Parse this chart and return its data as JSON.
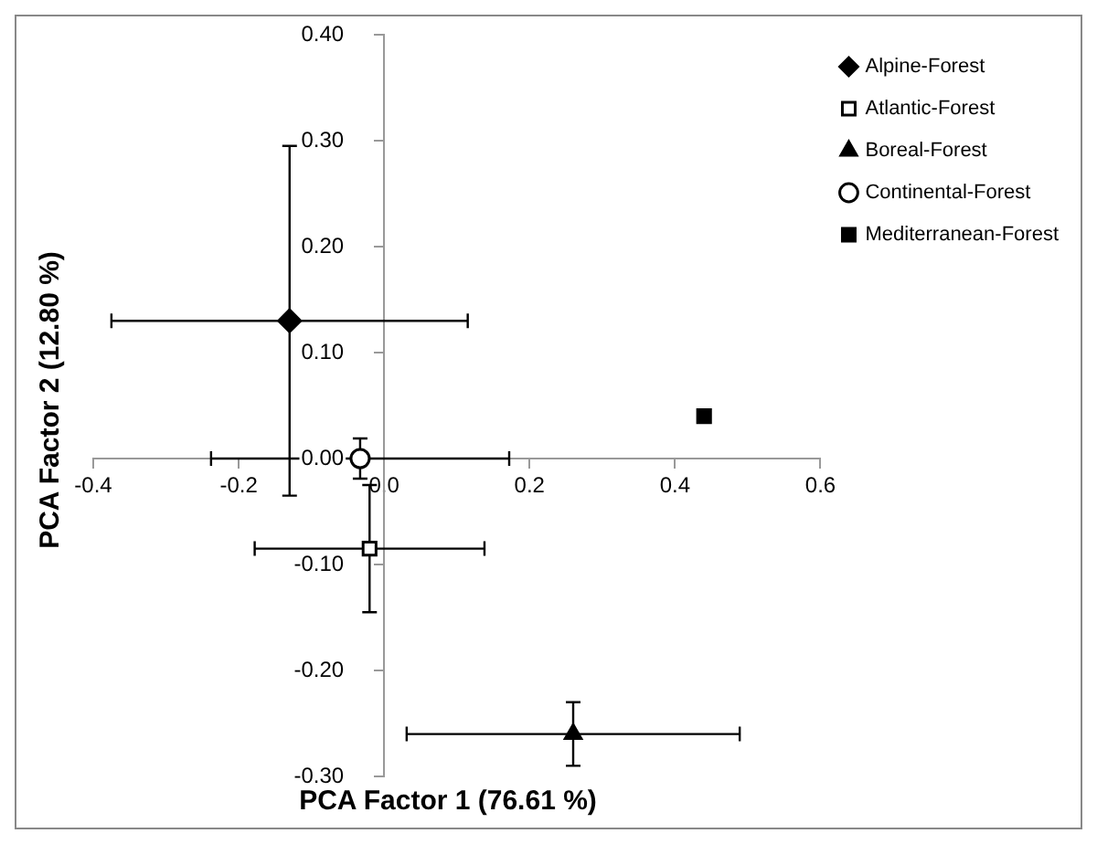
{
  "chart_data": {
    "type": "scatter",
    "xlabel": "PCA Factor 1 (76.61 %)",
    "ylabel": "PCA Factor 2 (12.80 %)",
    "xlim": [
      -0.4,
      0.6
    ],
    "ylim": [
      -0.3,
      0.4
    ],
    "xticks": [
      -0.4,
      -0.2,
      {
        "value": 0,
        "label": "0.0"
      },
      0.2,
      0.4,
      0.6
    ],
    "yticks": [
      {
        "value": -0.3,
        "label": "-0.30"
      },
      {
        "value": -0.2,
        "label": "-0.20"
      },
      {
        "value": -0.1,
        "label": "-0.10"
      },
      {
        "value": 0,
        "label": "0.00"
      },
      {
        "value": 0.1,
        "label": "0.10"
      },
      {
        "value": 0.2,
        "label": "0.20"
      },
      {
        "value": 0.3,
        "label": "0.30"
      },
      {
        "value": 0.4,
        "label": "0.40"
      }
    ],
    "grid": false,
    "legend": "top right",
    "series": [
      {
        "name": "Alpine-Forest",
        "color": "#000000",
        "marker": "diamond",
        "x": [
          -0.13
        ],
        "values": [
          0.13
        ],
        "errors": [
          0.165
        ],
        "xerrors": [
          0.245
        ]
      },
      {
        "name": "Atlantic-Forest",
        "color": "#ffffff",
        "marker": "square",
        "x": [
          -0.02
        ],
        "values": [
          -0.085
        ],
        "errors": [
          0.06
        ],
        "xerrors": [
          0.158
        ]
      },
      {
        "name": "Boreal-Forest",
        "color": "#000000",
        "marker": "triangle",
        "x": [
          0.26
        ],
        "values": [
          -0.26
        ],
        "errors": [
          0.03
        ],
        "xerrors": [
          0.229
        ]
      },
      {
        "name": "Continental-Forest",
        "color": "#ffffff",
        "marker": "circle",
        "x": [
          -0.033
        ],
        "values": [
          0.0
        ],
        "errors": [
          0.019
        ],
        "xerrors": [
          0.205
        ]
      },
      {
        "name": "Mediterranean-Forest",
        "color": "#000000",
        "marker": "square",
        "x": [
          0.44
        ],
        "values": [
          0.04
        ],
        "errors": [
          null
        ],
        "xerrors": [
          null
        ]
      }
    ]
  }
}
